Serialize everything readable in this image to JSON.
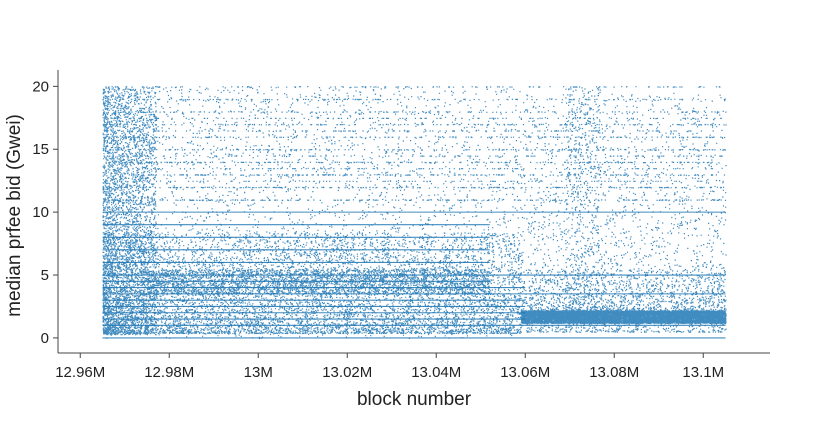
{
  "chart_data": {
    "type": "scatter",
    "title": "",
    "xlabel": "block number",
    "ylabel": "median prfee bid (Gwei)",
    "xlim": [
      12955000,
      13115000
    ],
    "ylim": [
      -1.2,
      21.3
    ],
    "x_ticks": [
      {
        "value": 12960000,
        "label": "12.96M"
      },
      {
        "value": 12980000,
        "label": "12.98M"
      },
      {
        "value": 13000000,
        "label": "13M"
      },
      {
        "value": 13020000,
        "label": "13.02M"
      },
      {
        "value": 13040000,
        "label": "13.04M"
      },
      {
        "value": 13060000,
        "label": "13.06M"
      },
      {
        "value": 13080000,
        "label": "13.08M"
      },
      {
        "value": 13100000,
        "label": "13.1M"
      }
    ],
    "y_ticks": [
      {
        "value": 0,
        "label": "0"
      },
      {
        "value": 5,
        "label": "5"
      },
      {
        "value": 10,
        "label": "10"
      },
      {
        "value": 15,
        "label": "15"
      },
      {
        "value": 20,
        "label": "20"
      }
    ],
    "grid": false,
    "marker_color": "#1f77b4",
    "x_range_data": [
      12965000,
      13105000
    ],
    "dense_band": {
      "x_range": [
        13059000,
        13105000
      ],
      "y_range": [
        1.2,
        2.2
      ]
    },
    "horizontal_levels": [
      {
        "value": 0,
        "x_range": [
          12965000,
          13105000
        ]
      },
      {
        "value": 1,
        "x_range": [
          12965000,
          13105000
        ]
      },
      {
        "value": 1.5,
        "x_range": [
          12965000,
          13060000
        ]
      },
      {
        "value": 2,
        "x_range": [
          12965000,
          13060000
        ]
      },
      {
        "value": 2.5,
        "x_range": [
          12965000,
          13060000
        ]
      },
      {
        "value": 3,
        "x_range": [
          12965000,
          13060000
        ]
      },
      {
        "value": 3.5,
        "x_range": [
          12965000,
          13105000
        ]
      },
      {
        "value": 4,
        "x_range": [
          12965000,
          13060000
        ]
      },
      {
        "value": 4.5,
        "x_range": [
          12965000,
          13052000
        ]
      },
      {
        "value": 5,
        "x_range": [
          12965000,
          13105000
        ]
      },
      {
        "value": 6,
        "x_range": [
          12965000,
          13052000
        ]
      },
      {
        "value": 7,
        "x_range": [
          12965000,
          13052000
        ]
      },
      {
        "value": 8,
        "x_range": [
          12965000,
          13052000
        ]
      },
      {
        "value": 9,
        "x_range": [
          12965000,
          13052000
        ]
      },
      {
        "value": 10,
        "x_range": [
          12965000,
          13105000
        ]
      }
    ]
  }
}
